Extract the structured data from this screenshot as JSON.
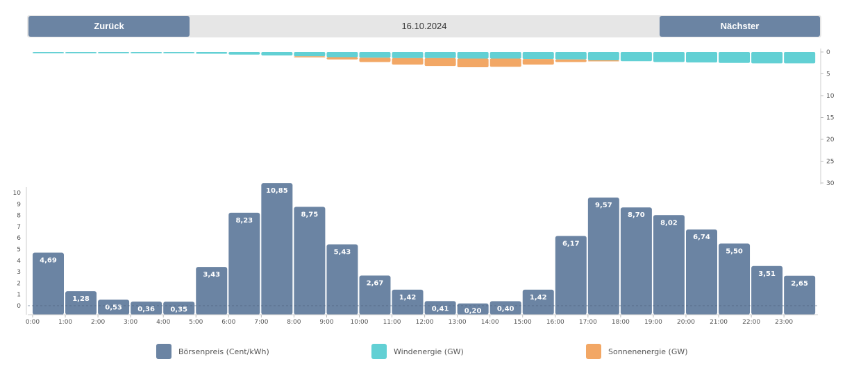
{
  "nav": {
    "prev_label": "Zurück",
    "next_label": "Nächster",
    "date": "16.10.2024"
  },
  "colors": {
    "price": "#6b84a3",
    "wind": "#62d0d4",
    "solar": "#f2a765",
    "nav_bg": "#e6e6e6"
  },
  "chart_data": [
    {
      "type": "bar",
      "categories": [
        "0:00",
        "1:00",
        "2:00",
        "3:00",
        "4:00",
        "5:00",
        "6:00",
        "7:00",
        "8:00",
        "9:00",
        "10:00",
        "11:00",
        "12:00",
        "13:00",
        "14:00",
        "15:00",
        "16:00",
        "17:00",
        "18:00",
        "19:00",
        "20:00",
        "21:00",
        "22:00",
        "23:00"
      ],
      "series": [
        {
          "name": "Börsenpreis (Cent/kWh)",
          "values": [
            4.69,
            1.28,
            0.53,
            0.36,
            0.35,
            3.43,
            8.23,
            10.85,
            8.75,
            5.43,
            2.67,
            1.42,
            0.41,
            0.2,
            0.4,
            1.42,
            6.17,
            9.57,
            8.7,
            8.02,
            6.74,
            5.5,
            3.51,
            2.65
          ],
          "labels": [
            "4,69",
            "1,28",
            "0,53",
            "0,36",
            "0,35",
            "3,43",
            "8,23",
            "10,85",
            "8,75",
            "5,43",
            "2,67",
            "1,42",
            "0,41",
            "0,20",
            "0,40",
            "1,42",
            "6,17",
            "9,57",
            "8,70",
            "8,02",
            "6,74",
            "5,50",
            "3,51",
            "2,65"
          ]
        }
      ],
      "ylim": [
        -0.8,
        10.5
      ],
      "yticks": [
        "0",
        "1",
        "2",
        "3",
        "4",
        "5",
        "6",
        "7",
        "8",
        "9",
        "10"
      ]
    },
    {
      "type": "bar",
      "stacked": true,
      "inverted_axis": true,
      "series": [
        {
          "name": "Windenergie (GW)",
          "values": [
            0.3,
            0.3,
            0.3,
            0.3,
            0.3,
            0.4,
            0.6,
            0.8,
            1.0,
            1.2,
            1.3,
            1.4,
            1.4,
            1.5,
            1.5,
            1.6,
            1.7,
            1.9,
            2.1,
            2.3,
            2.4,
            2.5,
            2.6,
            2.6
          ]
        },
        {
          "name": "Sonnenenergie (GW)",
          "values": [
            0,
            0,
            0,
            0,
            0,
            0,
            0,
            0,
            0.1,
            0.5,
            1.0,
            1.5,
            1.8,
            2.0,
            1.9,
            1.3,
            0.6,
            0.1,
            0,
            0,
            0,
            0,
            0,
            0
          ]
        }
      ],
      "ylim": [
        0,
        30
      ],
      "yticks": [
        "0",
        "5",
        "10",
        "15",
        "20",
        "25",
        "30"
      ]
    }
  ],
  "legend": [
    {
      "label": "Börsenpreis (Cent/kWh)"
    },
    {
      "label": "Windenergie (GW)"
    },
    {
      "label": "Sonnenenergie (GW)"
    }
  ]
}
